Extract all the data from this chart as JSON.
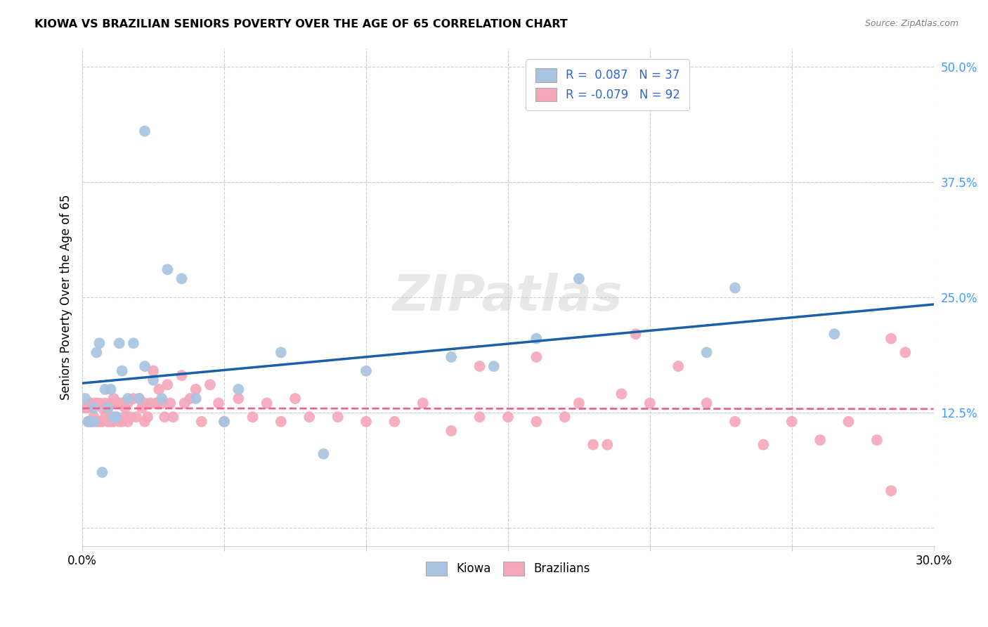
{
  "title": "KIOWA VS BRAZILIAN SENIORS POVERTY OVER THE AGE OF 65 CORRELATION CHART",
  "source": "Source: ZipAtlas.com",
  "ylabel": "Seniors Poverty Over the Age of 65",
  "xlim": [
    0.0,
    0.3
  ],
  "ylim": [
    -0.02,
    0.52
  ],
  "ytick_vals": [
    0.0,
    0.125,
    0.25,
    0.375,
    0.5
  ],
  "ytick_labels": [
    "",
    "12.5%",
    "25.0%",
    "37.5%",
    "50.0%"
  ],
  "xtick_vals": [
    0.0,
    0.05,
    0.1,
    0.15,
    0.2,
    0.25,
    0.3
  ],
  "xtick_labels": [
    "0.0%",
    "",
    "",
    "",
    "",
    "",
    "30.0%"
  ],
  "kiowa_R": 0.087,
  "kiowa_N": 37,
  "brazilian_R": -0.079,
  "brazilian_N": 92,
  "kiowa_color": "#a8c4e0",
  "brazilian_color": "#f4a7b9",
  "kiowa_line_color": "#1a5fa8",
  "brazilian_line_color": "#f06090",
  "background_color": "#ffffff",
  "grid_color": "#cccccc",
  "kiowa_x": [
    0.001,
    0.002,
    0.003,
    0.004,
    0.004,
    0.005,
    0.006,
    0.007,
    0.008,
    0.009,
    0.01,
    0.011,
    0.012,
    0.013,
    0.014,
    0.016,
    0.018,
    0.02,
    0.022,
    0.025,
    0.028,
    0.03,
    0.035,
    0.04,
    0.05,
    0.055,
    0.07,
    0.085,
    0.1,
    0.13,
    0.145,
    0.16,
    0.175,
    0.22,
    0.23,
    0.265,
    0.022
  ],
  "kiowa_y": [
    0.14,
    0.115,
    0.115,
    0.115,
    0.13,
    0.19,
    0.2,
    0.06,
    0.15,
    0.13,
    0.15,
    0.12,
    0.12,
    0.2,
    0.17,
    0.14,
    0.2,
    0.14,
    0.175,
    0.16,
    0.14,
    0.28,
    0.27,
    0.14,
    0.115,
    0.15,
    0.19,
    0.08,
    0.17,
    0.185,
    0.175,
    0.205,
    0.27,
    0.19,
    0.26,
    0.21,
    0.43
  ],
  "brazilian_x": [
    0.0,
    0.001,
    0.002,
    0.002,
    0.003,
    0.003,
    0.004,
    0.004,
    0.005,
    0.005,
    0.006,
    0.006,
    0.007,
    0.007,
    0.008,
    0.008,
    0.009,
    0.009,
    0.01,
    0.01,
    0.01,
    0.011,
    0.011,
    0.012,
    0.012,
    0.013,
    0.013,
    0.014,
    0.014,
    0.015,
    0.015,
    0.016,
    0.016,
    0.017,
    0.018,
    0.019,
    0.02,
    0.021,
    0.022,
    0.022,
    0.023,
    0.024,
    0.025,
    0.026,
    0.027,
    0.028,
    0.029,
    0.03,
    0.031,
    0.032,
    0.035,
    0.036,
    0.038,
    0.04,
    0.042,
    0.045,
    0.048,
    0.05,
    0.055,
    0.06,
    0.065,
    0.07,
    0.075,
    0.08,
    0.09,
    0.1,
    0.11,
    0.12,
    0.13,
    0.14,
    0.15,
    0.16,
    0.17,
    0.175,
    0.18,
    0.185,
    0.19,
    0.2,
    0.21,
    0.22,
    0.23,
    0.24,
    0.25,
    0.26,
    0.27,
    0.28,
    0.285,
    0.29,
    0.14,
    0.16,
    0.195,
    0.285
  ],
  "brazilian_y": [
    0.13,
    0.13,
    0.13,
    0.115,
    0.115,
    0.135,
    0.12,
    0.135,
    0.115,
    0.135,
    0.115,
    0.135,
    0.115,
    0.13,
    0.12,
    0.135,
    0.115,
    0.13,
    0.115,
    0.135,
    0.12,
    0.14,
    0.115,
    0.135,
    0.12,
    0.135,
    0.115,
    0.135,
    0.115,
    0.13,
    0.12,
    0.135,
    0.115,
    0.12,
    0.14,
    0.12,
    0.14,
    0.13,
    0.115,
    0.135,
    0.12,
    0.135,
    0.17,
    0.135,
    0.15,
    0.135,
    0.12,
    0.155,
    0.135,
    0.12,
    0.165,
    0.135,
    0.14,
    0.15,
    0.115,
    0.155,
    0.135,
    0.115,
    0.14,
    0.12,
    0.135,
    0.115,
    0.14,
    0.12,
    0.12,
    0.115,
    0.115,
    0.135,
    0.105,
    0.12,
    0.12,
    0.115,
    0.12,
    0.135,
    0.09,
    0.09,
    0.145,
    0.135,
    0.175,
    0.135,
    0.115,
    0.09,
    0.115,
    0.095,
    0.115,
    0.095,
    0.04,
    0.19,
    0.175,
    0.185,
    0.21,
    0.205
  ]
}
